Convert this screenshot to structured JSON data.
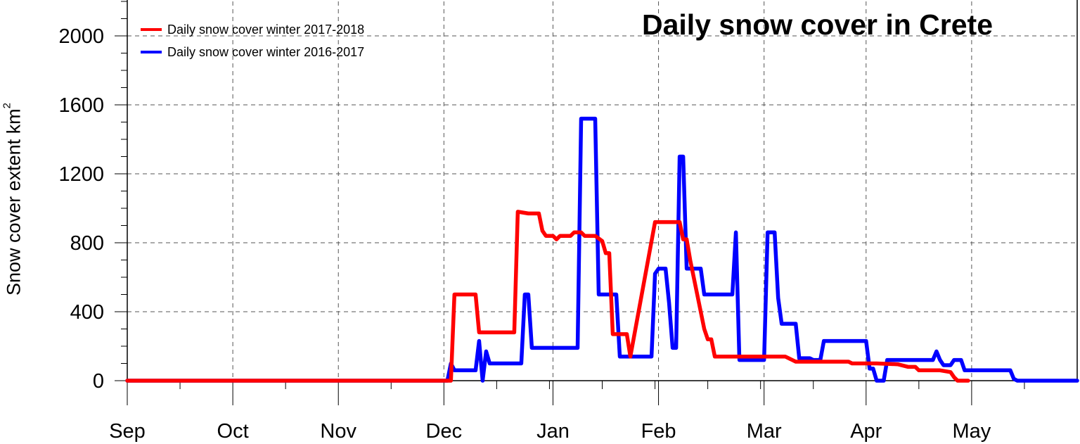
{
  "chart_data": {
    "type": "line",
    "title": "Daily snow cover in Crete",
    "ylabel": "Snow cover extent km",
    "ylabel_superscript": "2",
    "xlabel": "",
    "x_ticks": [
      "Sep",
      "Oct",
      "Nov",
      "Dec",
      "Jan",
      "Feb",
      "Mar",
      "Apr",
      "May"
    ],
    "x_tick_day": [
      0,
      30,
      60,
      90,
      121,
      151,
      181,
      210,
      240
    ],
    "xlim": [
      0,
      270
    ],
    "y_ticks": [
      "0",
      "400",
      "800",
      "1200",
      "1600",
      "2000"
    ],
    "y_tick_values": [
      0,
      400,
      800,
      1200,
      1600,
      2000
    ],
    "ylim": [
      0,
      2200
    ],
    "grid": true,
    "legend": "top-left",
    "series": [
      {
        "name": "Daily snow cover winter 2017-2018",
        "color": "#ff0000",
        "points": [
          [
            0,
            0
          ],
          [
            92,
            0
          ],
          [
            93,
            500
          ],
          [
            99,
            500
          ],
          [
            100,
            280
          ],
          [
            110,
            280
          ],
          [
            111,
            980
          ],
          [
            114,
            970
          ],
          [
            117,
            970
          ],
          [
            118,
            870
          ],
          [
            119,
            840
          ],
          [
            121,
            840
          ],
          [
            122,
            820
          ],
          [
            123,
            840
          ],
          [
            126,
            840
          ],
          [
            127,
            860
          ],
          [
            129,
            860
          ],
          [
            130,
            840
          ],
          [
            133,
            840
          ],
          [
            135,
            810
          ],
          [
            136,
            740
          ],
          [
            137,
            740
          ],
          [
            138,
            270
          ],
          [
            141,
            270
          ],
          [
            142,
            270
          ],
          [
            143,
            140
          ],
          [
            150,
            920
          ],
          [
            155,
            920
          ],
          [
            157,
            920
          ],
          [
            158,
            820
          ],
          [
            159,
            820
          ],
          [
            160,
            700
          ],
          [
            161,
            600
          ],
          [
            162,
            500
          ],
          [
            163,
            400
          ],
          [
            164,
            300
          ],
          [
            165,
            240
          ],
          [
            166,
            240
          ],
          [
            167,
            140
          ],
          [
            180,
            140
          ],
          [
            183,
            140
          ],
          [
            187,
            140
          ],
          [
            188,
            130
          ],
          [
            189,
            120
          ],
          [
            190,
            110
          ],
          [
            205,
            110
          ],
          [
            206,
            100
          ],
          [
            213,
            100
          ],
          [
            219,
            95
          ],
          [
            222,
            80
          ],
          [
            224,
            80
          ],
          [
            225,
            60
          ],
          [
            231,
            60
          ],
          [
            234,
            50
          ],
          [
            235,
            20
          ],
          [
            236,
            0
          ],
          [
            239,
            0
          ]
        ]
      },
      {
        "name": "Daily snow cover winter 2016-2017",
        "color": "#0000ff",
        "points": [
          [
            0,
            0
          ],
          [
            91,
            0
          ],
          [
            92,
            100
          ],
          [
            93,
            60
          ],
          [
            99,
            60
          ],
          [
            100,
            230
          ],
          [
            101,
            0
          ],
          [
            102,
            170
          ],
          [
            103,
            100
          ],
          [
            112,
            100
          ],
          [
            113,
            500
          ],
          [
            114,
            500
          ],
          [
            115,
            190
          ],
          [
            128,
            190
          ],
          [
            129,
            1520
          ],
          [
            133,
            1520
          ],
          [
            134,
            500
          ],
          [
            139,
            500
          ],
          [
            140,
            140
          ],
          [
            149,
            140
          ],
          [
            150,
            620
          ],
          [
            151,
            650
          ],
          [
            153,
            650
          ],
          [
            154,
            450
          ],
          [
            155,
            190
          ],
          [
            156,
            190
          ],
          [
            157,
            1300
          ],
          [
            158,
            1300
          ],
          [
            159,
            650
          ],
          [
            163,
            650
          ],
          [
            164,
            500
          ],
          [
            172,
            500
          ],
          [
            173,
            860
          ],
          [
            174,
            120
          ],
          [
            181,
            120
          ],
          [
            182,
            860
          ],
          [
            184,
            860
          ],
          [
            185,
            480
          ],
          [
            186,
            330
          ],
          [
            190,
            330
          ],
          [
            191,
            130
          ],
          [
            194,
            130
          ],
          [
            195,
            120
          ],
          [
            197,
            120
          ],
          [
            198,
            230
          ],
          [
            210,
            230
          ],
          [
            211,
            70
          ],
          [
            212,
            70
          ],
          [
            213,
            0
          ],
          [
            215,
            0
          ],
          [
            216,
            120
          ],
          [
            229,
            120
          ],
          [
            230,
            170
          ],
          [
            231,
            120
          ],
          [
            232,
            90
          ],
          [
            234,
            90
          ],
          [
            235,
            120
          ],
          [
            237,
            120
          ],
          [
            238,
            60
          ],
          [
            251,
            60
          ],
          [
            252,
            10
          ],
          [
            253,
            0
          ],
          [
            270,
            0
          ]
        ]
      }
    ]
  }
}
